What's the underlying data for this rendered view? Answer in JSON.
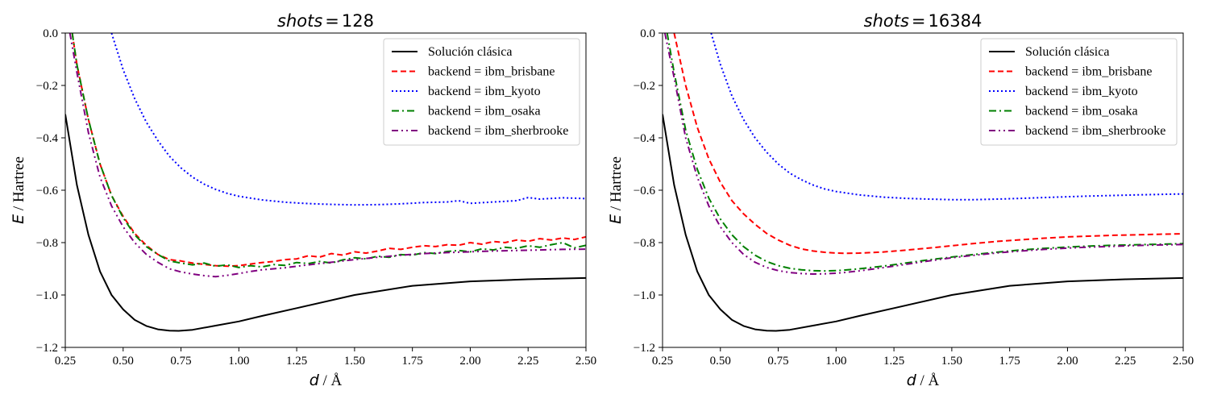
{
  "chart_data": [
    {
      "type": "line",
      "title_var": "shots",
      "title_eq": "=",
      "title_value": "128",
      "xlabel_var": "d",
      "xlabel_unit": " / Å",
      "ylabel_var": "E",
      "ylabel_unit": " / Hartree",
      "xlim": [
        0.25,
        2.5
      ],
      "ylim": [
        -1.2,
        0.0
      ],
      "xticks": [
        "0.25",
        "0.50",
        "0.75",
        "1.00",
        "1.25",
        "1.50",
        "1.75",
        "2.00",
        "2.25",
        "2.50"
      ],
      "yticks": [
        "0.0",
        "−0.2",
        "−0.4",
        "−0.6",
        "−0.8",
        "−1.0",
        "−1.2"
      ],
      "grid": false,
      "legend_position": "top-right",
      "series": [
        {
          "name": "Solución clásica",
          "color": "#000000",
          "style": "solid",
          "x": [
            0.25,
            0.3,
            0.35,
            0.4,
            0.45,
            0.5,
            0.55,
            0.6,
            0.65,
            0.7,
            0.74,
            0.8,
            0.9,
            1.0,
            1.1,
            1.25,
            1.5,
            1.75,
            2.0,
            2.25,
            2.5
          ],
          "y": [
            -0.31,
            -0.58,
            -0.77,
            -0.91,
            -1.0,
            -1.055,
            -1.095,
            -1.118,
            -1.131,
            -1.136,
            -1.137,
            -1.133,
            -1.117,
            -1.101,
            -1.08,
            -1.05,
            -1.0,
            -0.965,
            -0.948,
            -0.94,
            -0.935
          ]
        },
        {
          "name": "backend = ibm_brisbane",
          "color": "#ff0000",
          "style": "dashed",
          "x": [
            0.28,
            0.3,
            0.35,
            0.4,
            0.45,
            0.5,
            0.55,
            0.6,
            0.65,
            0.7,
            0.75,
            0.8,
            0.85,
            0.9,
            0.95,
            1.0,
            1.05,
            1.1,
            1.15,
            1.2,
            1.25,
            1.3,
            1.35,
            1.4,
            1.45,
            1.5,
            1.55,
            1.6,
            1.65,
            1.7,
            1.75,
            1.8,
            1.85,
            1.9,
            1.95,
            2.0,
            2.05,
            2.1,
            2.15,
            2.2,
            2.25,
            2.3,
            2.35,
            2.4,
            2.45,
            2.5
          ],
          "y": [
            0.0,
            -0.12,
            -0.33,
            -0.5,
            -0.62,
            -0.7,
            -0.765,
            -0.81,
            -0.845,
            -0.865,
            -0.87,
            -0.878,
            -0.883,
            -0.888,
            -0.89,
            -0.888,
            -0.882,
            -0.876,
            -0.872,
            -0.865,
            -0.862,
            -0.85,
            -0.855,
            -0.842,
            -0.848,
            -0.835,
            -0.84,
            -0.832,
            -0.822,
            -0.826,
            -0.818,
            -0.812,
            -0.815,
            -0.808,
            -0.81,
            -0.8,
            -0.806,
            -0.796,
            -0.8,
            -0.79,
            -0.795,
            -0.785,
            -0.79,
            -0.782,
            -0.788,
            -0.778
          ]
        },
        {
          "name": "backend = ibm_kyoto",
          "color": "#0000ff",
          "style": "dotted",
          "x": [
            0.45,
            0.5,
            0.55,
            0.6,
            0.65,
            0.7,
            0.75,
            0.8,
            0.85,
            0.9,
            0.95,
            1.0,
            1.1,
            1.2,
            1.3,
            1.4,
            1.5,
            1.6,
            1.7,
            1.8,
            1.9,
            1.95,
            2.0,
            2.1,
            2.2,
            2.25,
            2.3,
            2.4,
            2.5
          ],
          "y": [
            0.0,
            -0.14,
            -0.25,
            -0.34,
            -0.41,
            -0.47,
            -0.515,
            -0.55,
            -0.577,
            -0.597,
            -0.612,
            -0.623,
            -0.637,
            -0.646,
            -0.651,
            -0.654,
            -0.656,
            -0.655,
            -0.652,
            -0.647,
            -0.645,
            -0.64,
            -0.65,
            -0.645,
            -0.64,
            -0.628,
            -0.634,
            -0.629,
            -0.632
          ]
        },
        {
          "name": "backend = ibm_osaka",
          "color": "#008000",
          "style": "dashdot",
          "x": [
            0.28,
            0.3,
            0.35,
            0.4,
            0.45,
            0.5,
            0.55,
            0.6,
            0.65,
            0.7,
            0.75,
            0.8,
            0.85,
            0.9,
            0.95,
            1.0,
            1.05,
            1.1,
            1.15,
            1.2,
            1.25,
            1.3,
            1.35,
            1.4,
            1.45,
            1.5,
            1.55,
            1.6,
            1.65,
            1.7,
            1.75,
            1.8,
            1.85,
            1.9,
            1.95,
            2.0,
            2.05,
            2.1,
            2.15,
            2.2,
            2.25,
            2.3,
            2.35,
            2.4,
            2.45,
            2.5
          ],
          "y": [
            0.0,
            -0.12,
            -0.33,
            -0.5,
            -0.62,
            -0.705,
            -0.77,
            -0.815,
            -0.845,
            -0.87,
            -0.878,
            -0.885,
            -0.878,
            -0.89,
            -0.885,
            -0.895,
            -0.888,
            -0.893,
            -0.884,
            -0.887,
            -0.876,
            -0.88,
            -0.872,
            -0.878,
            -0.866,
            -0.858,
            -0.862,
            -0.852,
            -0.856,
            -0.846,
            -0.848,
            -0.838,
            -0.842,
            -0.834,
            -0.83,
            -0.835,
            -0.824,
            -0.828,
            -0.818,
            -0.822,
            -0.812,
            -0.818,
            -0.808,
            -0.8,
            -0.82,
            -0.81
          ]
        },
        {
          "name": "backend = ibm_sherbrooke",
          "color": "#800080",
          "style": "dashdotdot",
          "x": [
            0.27,
            0.3,
            0.35,
            0.4,
            0.45,
            0.5,
            0.55,
            0.6,
            0.65,
            0.7,
            0.75,
            0.8,
            0.85,
            0.9,
            0.95,
            1.0,
            1.05,
            1.1,
            1.15,
            1.2,
            1.25,
            1.3,
            1.4,
            1.5,
            1.6,
            1.7,
            1.8,
            1.9,
            2.0,
            2.1,
            2.2,
            2.3,
            2.4,
            2.5
          ],
          "y": [
            0.0,
            -0.15,
            -0.38,
            -0.55,
            -0.66,
            -0.74,
            -0.8,
            -0.845,
            -0.875,
            -0.9,
            -0.912,
            -0.92,
            -0.926,
            -0.93,
            -0.925,
            -0.918,
            -0.91,
            -0.904,
            -0.9,
            -0.896,
            -0.89,
            -0.885,
            -0.875,
            -0.865,
            -0.856,
            -0.848,
            -0.842,
            -0.838,
            -0.835,
            -0.832,
            -0.83,
            -0.828,
            -0.826,
            -0.825
          ]
        }
      ]
    },
    {
      "type": "line",
      "title_var": "shots",
      "title_eq": "=",
      "title_value": "16384",
      "xlabel_var": "d",
      "xlabel_unit": " / Å",
      "ylabel_var": "E",
      "ylabel_unit": " / Hartree",
      "xlim": [
        0.25,
        2.5
      ],
      "ylim": [
        -1.2,
        0.0
      ],
      "xticks": [
        "0.25",
        "0.50",
        "0.75",
        "1.00",
        "1.25",
        "1.50",
        "1.75",
        "2.00",
        "2.25",
        "2.50"
      ],
      "yticks": [
        "0.0",
        "−0.2",
        "−0.4",
        "−0.6",
        "−0.8",
        "−1.0",
        "−1.2"
      ],
      "grid": false,
      "legend_position": "top-right",
      "series": [
        {
          "name": "Solución clásica",
          "color": "#000000",
          "style": "solid",
          "x": [
            0.25,
            0.3,
            0.35,
            0.4,
            0.45,
            0.5,
            0.55,
            0.6,
            0.65,
            0.7,
            0.74,
            0.8,
            0.9,
            1.0,
            1.1,
            1.25,
            1.5,
            1.75,
            2.0,
            2.25,
            2.5
          ],
          "y": [
            -0.31,
            -0.58,
            -0.77,
            -0.91,
            -1.0,
            -1.055,
            -1.095,
            -1.118,
            -1.131,
            -1.136,
            -1.137,
            -1.133,
            -1.117,
            -1.101,
            -1.08,
            -1.05,
            -1.0,
            -0.965,
            -0.948,
            -0.94,
            -0.935
          ]
        },
        {
          "name": "backend = ibm_brisbane",
          "color": "#ff0000",
          "style": "dashed",
          "x": [
            0.3,
            0.35,
            0.4,
            0.45,
            0.5,
            0.55,
            0.6,
            0.65,
            0.7,
            0.75,
            0.8,
            0.85,
            0.9,
            0.95,
            1.0,
            1.05,
            1.1,
            1.2,
            1.3,
            1.4,
            1.5,
            1.6,
            1.7,
            1.8,
            1.9,
            2.0,
            2.1,
            2.2,
            2.3,
            2.4,
            2.5
          ],
          "y": [
            0.0,
            -0.2,
            -0.36,
            -0.48,
            -0.57,
            -0.64,
            -0.69,
            -0.73,
            -0.765,
            -0.79,
            -0.81,
            -0.824,
            -0.832,
            -0.837,
            -0.84,
            -0.841,
            -0.84,
            -0.836,
            -0.829,
            -0.821,
            -0.812,
            -0.803,
            -0.795,
            -0.789,
            -0.783,
            -0.778,
            -0.775,
            -0.772,
            -0.77,
            -0.768,
            -0.766
          ]
        },
        {
          "name": "backend = ibm_kyoto",
          "color": "#0000ff",
          "style": "dotted",
          "x": [
            0.46,
            0.5,
            0.55,
            0.6,
            0.65,
            0.7,
            0.75,
            0.8,
            0.85,
            0.9,
            0.95,
            1.0,
            1.1,
            1.2,
            1.3,
            1.4,
            1.5,
            1.6,
            1.7,
            1.8,
            1.9,
            2.0,
            2.1,
            2.2,
            2.3,
            2.4,
            2.5
          ],
          "y": [
            0.0,
            -0.12,
            -0.24,
            -0.33,
            -0.4,
            -0.455,
            -0.5,
            -0.535,
            -0.56,
            -0.58,
            -0.595,
            -0.605,
            -0.618,
            -0.626,
            -0.631,
            -0.634,
            -0.636,
            -0.636,
            -0.634,
            -0.631,
            -0.628,
            -0.625,
            -0.622,
            -0.62,
            -0.618,
            -0.616,
            -0.614
          ]
        },
        {
          "name": "backend = ibm_osaka",
          "color": "#008000",
          "style": "dashdot",
          "x": [
            0.27,
            0.3,
            0.35,
            0.4,
            0.45,
            0.5,
            0.55,
            0.6,
            0.65,
            0.7,
            0.75,
            0.8,
            0.85,
            0.9,
            0.95,
            1.0,
            1.05,
            1.1,
            1.2,
            1.3,
            1.4,
            1.5,
            1.6,
            1.7,
            1.8,
            1.9,
            2.0,
            2.1,
            2.2,
            2.3,
            2.4,
            2.5
          ],
          "y": [
            0.0,
            -0.15,
            -0.37,
            -0.52,
            -0.63,
            -0.71,
            -0.77,
            -0.815,
            -0.848,
            -0.872,
            -0.888,
            -0.898,
            -0.904,
            -0.907,
            -0.908,
            -0.907,
            -0.904,
            -0.9,
            -0.89,
            -0.878,
            -0.866,
            -0.855,
            -0.845,
            -0.836,
            -0.828,
            -0.822,
            -0.817,
            -0.813,
            -0.81,
            -0.808,
            -0.806,
            -0.804
          ]
        },
        {
          "name": "backend = ibm_sherbrooke",
          "color": "#800080",
          "style": "dashdotdot",
          "x": [
            0.26,
            0.3,
            0.35,
            0.4,
            0.45,
            0.5,
            0.55,
            0.6,
            0.65,
            0.7,
            0.75,
            0.8,
            0.85,
            0.9,
            0.95,
            1.0,
            1.05,
            1.1,
            1.2,
            1.3,
            1.4,
            1.5,
            1.6,
            1.7,
            1.8,
            1.9,
            2.0,
            2.1,
            2.2,
            2.3,
            2.4,
            2.5
          ],
          "y": [
            0.0,
            -0.17,
            -0.4,
            -0.55,
            -0.66,
            -0.74,
            -0.8,
            -0.845,
            -0.875,
            -0.895,
            -0.907,
            -0.914,
            -0.918,
            -0.92,
            -0.919,
            -0.917,
            -0.913,
            -0.908,
            -0.896,
            -0.883,
            -0.87,
            -0.858,
            -0.848,
            -0.839,
            -0.832,
            -0.826,
            -0.821,
            -0.817,
            -0.814,
            -0.811,
            -0.809,
            -0.807
          ]
        }
      ]
    }
  ]
}
